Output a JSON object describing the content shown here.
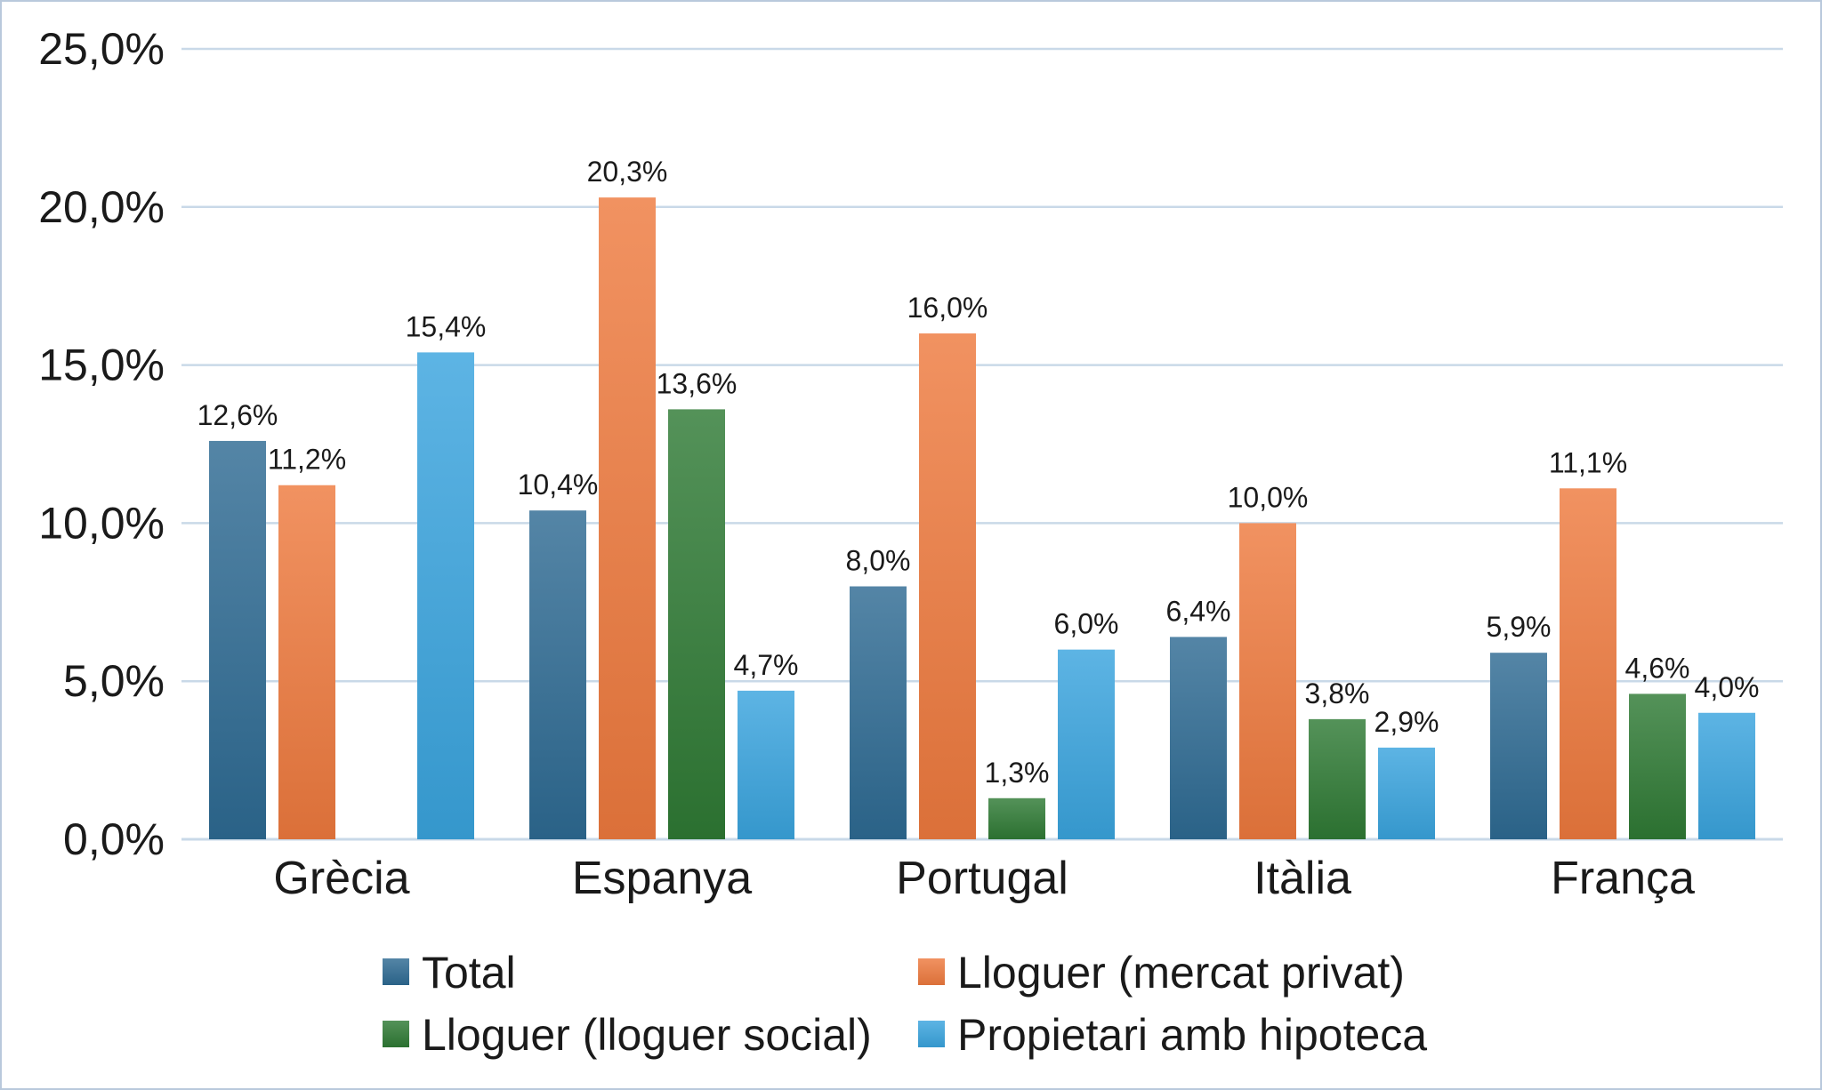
{
  "chart_data": {
    "type": "bar",
    "categories": [
      "Grècia",
      "Espanya",
      "Portugal",
      "Itàlia",
      "França"
    ],
    "series": [
      {
        "name": "Total",
        "color": "#2e6a93",
        "values": [
          12.6,
          10.4,
          8.0,
          6.4,
          5.9
        ],
        "labels": [
          "12,6%",
          "10,4%",
          "8,0%",
          "6,4%",
          "5,9%"
        ]
      },
      {
        "name": "Lloguer (mercat privat)",
        "color": "#ee7a3e",
        "values": [
          11.2,
          20.3,
          16.0,
          10.0,
          11.1
        ],
        "labels": [
          "11,2%",
          "20,3%",
          "16,0%",
          "10,0%",
          "11,1%"
        ]
      },
      {
        "name": "Lloguer (lloguer social)",
        "color": "#2f7a34",
        "values": [
          null,
          13.6,
          1.3,
          3.8,
          4.6
        ],
        "labels": [
          null,
          "13,6%",
          "1,3%",
          "3,8%",
          "4,6%"
        ]
      },
      {
        "name": "Propietari amb hipoteca",
        "color": "#3aa4de",
        "values": [
          15.4,
          4.7,
          6.0,
          2.9,
          4.0
        ],
        "labels": [
          "15,4%",
          "4,7%",
          "6,0%",
          "2,9%",
          "4,0%"
        ]
      }
    ],
    "y_ticks": [
      "0,0%",
      "5,0%",
      "10,0%",
      "15,0%",
      "20,0%",
      "25,0%"
    ],
    "ylim": [
      0,
      25
    ],
    "grid": true,
    "legend_position": "bottom"
  }
}
